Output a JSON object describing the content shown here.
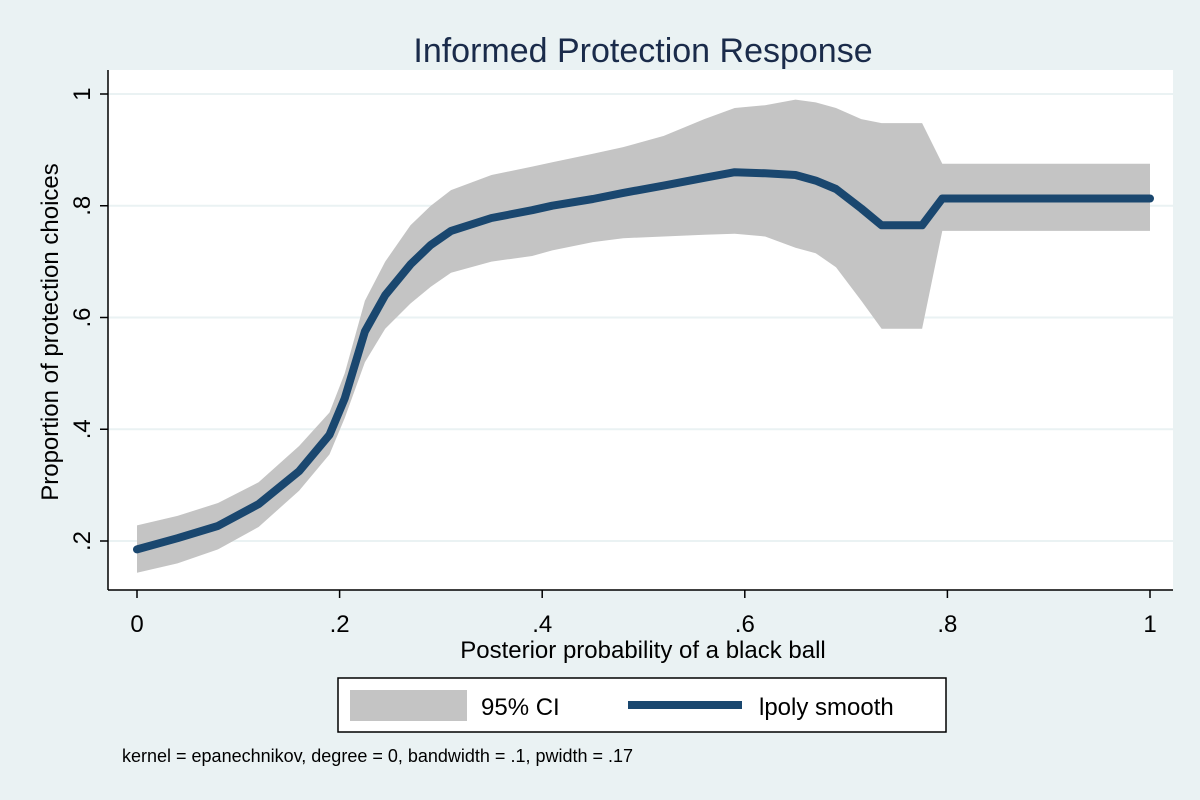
{
  "chart_data": {
    "type": "line",
    "title": "Informed Protection Response",
    "xlabel": "Posterior probability of a black ball",
    "ylabel": "Proportion of protection choices",
    "xlim": [
      0,
      1
    ],
    "ylim": [
      0.15,
      1
    ],
    "x_ticks": [
      0,
      0.2,
      0.4,
      0.6,
      0.8,
      1
    ],
    "x_tick_labels": [
      "0",
      ".2",
      ".4",
      ".6",
      ".8",
      "1"
    ],
    "y_ticks": [
      0.2,
      0.4,
      0.6,
      0.8,
      1
    ],
    "y_tick_labels": [
      ".2",
      ".4",
      ".6",
      ".8",
      "1"
    ],
    "grid": true,
    "legend_position": "bottom",
    "x": [
      0,
      0.04,
      0.08,
      0.12,
      0.16,
      0.19,
      0.205,
      0.225,
      0.245,
      0.27,
      0.29,
      0.31,
      0.35,
      0.39,
      0.41,
      0.45,
      0.48,
      0.52,
      0.56,
      0.59,
      0.62,
      0.65,
      0.67,
      0.69,
      0.715,
      0.735,
      0.755,
      0.775,
      0.795,
      0.85,
      0.9,
      0.95,
      1.0
    ],
    "series": [
      {
        "name": "lpoly smooth",
        "type": "line",
        "color": "#1a476f",
        "values": [
          0.185,
          0.205,
          0.227,
          0.266,
          0.325,
          0.39,
          0.455,
          0.575,
          0.64,
          0.695,
          0.73,
          0.755,
          0.778,
          0.792,
          0.8,
          0.812,
          0.823,
          0.836,
          0.85,
          0.86,
          0.858,
          0.855,
          0.845,
          0.83,
          0.795,
          0.765,
          0.765,
          0.765,
          0.813,
          0.813,
          0.813,
          0.813,
          0.813
        ]
      },
      {
        "name": "95% CI",
        "type": "area",
        "color": "#c4c4c4",
        "lower": [
          0.143,
          0.16,
          0.185,
          0.225,
          0.29,
          0.355,
          0.42,
          0.52,
          0.58,
          0.625,
          0.655,
          0.68,
          0.7,
          0.71,
          0.72,
          0.735,
          0.742,
          0.745,
          0.748,
          0.75,
          0.745,
          0.725,
          0.715,
          0.69,
          0.63,
          0.58,
          0.58,
          0.58,
          0.755,
          0.755,
          0.755,
          0.755,
          0.755
        ],
        "upper": [
          0.228,
          0.245,
          0.268,
          0.305,
          0.37,
          0.43,
          0.5,
          0.63,
          0.7,
          0.765,
          0.8,
          0.828,
          0.855,
          0.87,
          0.878,
          0.893,
          0.905,
          0.925,
          0.955,
          0.975,
          0.98,
          0.99,
          0.985,
          0.975,
          0.955,
          0.948,
          0.948,
          0.948,
          0.875,
          0.875,
          0.875,
          0.875,
          0.875
        ]
      }
    ],
    "legend": {
      "ci_label": "95% CI",
      "line_label": "lpoly smooth"
    },
    "note": "kernel = epanechnikov, degree = 0, bandwidth = .1, pwidth = .17"
  }
}
